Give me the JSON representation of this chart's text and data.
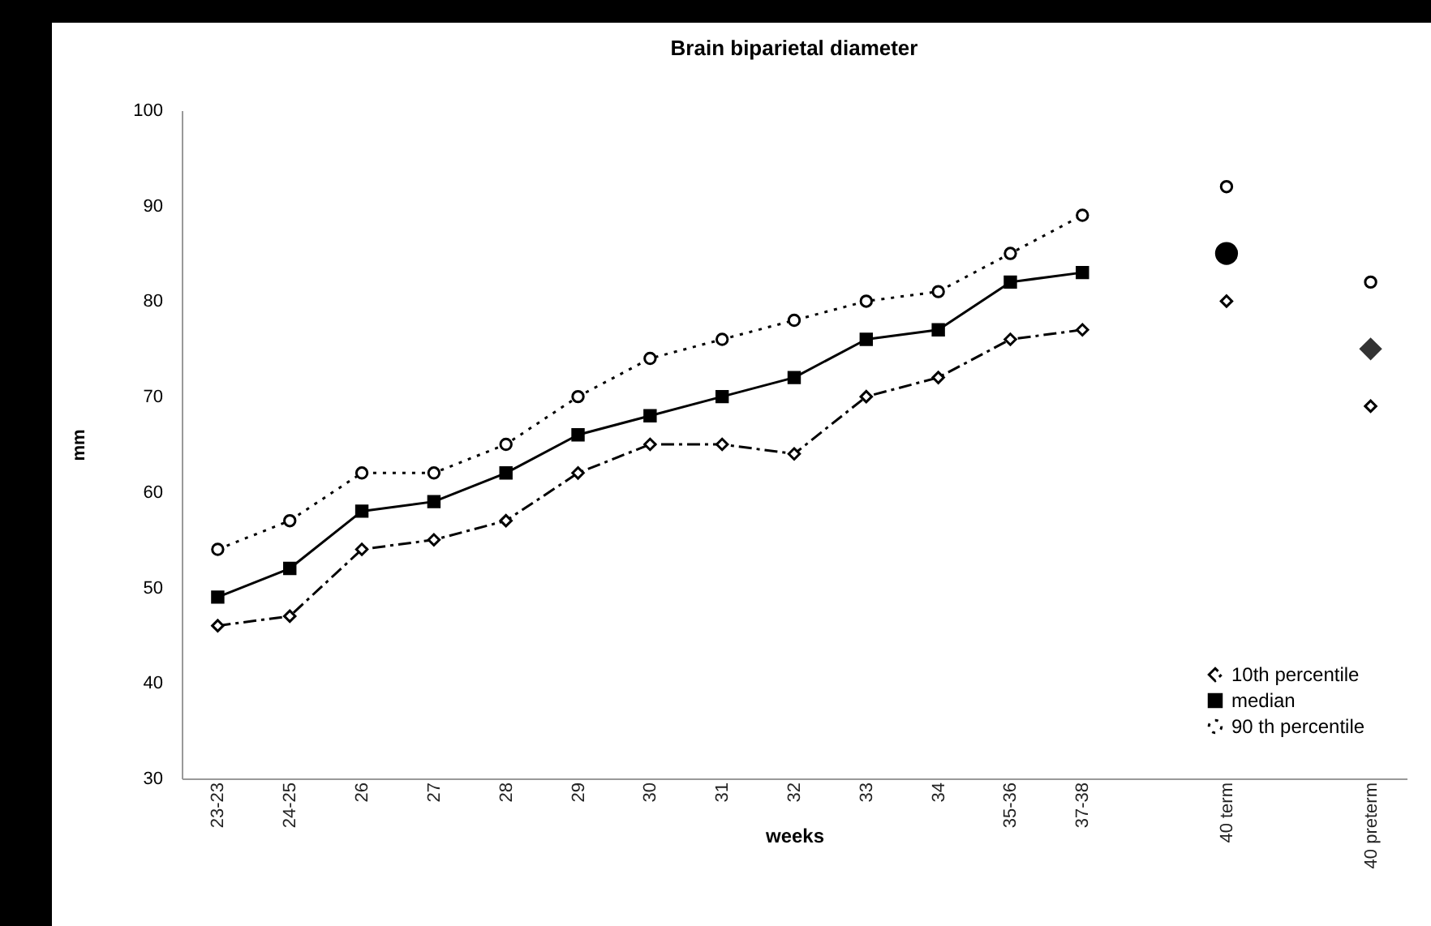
{
  "chart_data": {
    "type": "line",
    "title": "Brain biparietal diameter",
    "xlabel": "weeks",
    "ylabel": "mm",
    "categories": [
      "23-23",
      "24-25",
      "26",
      "27",
      "28",
      "29",
      "30",
      "31",
      "32",
      "33",
      "34",
      "35-36",
      "37-38",
      null,
      "40 term",
      null,
      "40 preterm"
    ],
    "series": [
      {
        "name": "10th percentile",
        "color": "#000000",
        "marker": "diamond",
        "line_style": "dashed",
        "values": [
          46,
          47,
          54,
          55,
          57,
          62,
          65,
          65,
          64,
          70,
          72,
          76,
          77,
          null,
          80,
          null,
          69
        ]
      },
      {
        "name": "median",
        "color": "#000000",
        "marker": "square",
        "line_style": "solid",
        "values": [
          49,
          52,
          58,
          59,
          62,
          66,
          68,
          70,
          72,
          76,
          77,
          82,
          83,
          null,
          null,
          null,
          null
        ]
      },
      {
        "name": "90 th percentile",
        "color": "#000000",
        "marker": "circle",
        "line_style": "dotted",
        "values": [
          54,
          57,
          62,
          62,
          65,
          70,
          74,
          76,
          78,
          80,
          81,
          85,
          89,
          null,
          92,
          null,
          82
        ]
      },
      {
        "type": "scatter",
        "color": "#000000",
        "marker": "circle",
        "x": [
          "40 term"
        ],
        "values": [
          85
        ]
      },
      {
        "type": "scatter",
        "color": "#333333",
        "marker": "diamond",
        "x": [
          "40 preterm"
        ],
        "values": [
          75
        ]
      }
    ],
    "ylim": [
      30,
      100
    ],
    "yticks": [
      30,
      40,
      50,
      60,
      70,
      80,
      90,
      100
    ],
    "grid": false,
    "legend": "bottom right"
  }
}
